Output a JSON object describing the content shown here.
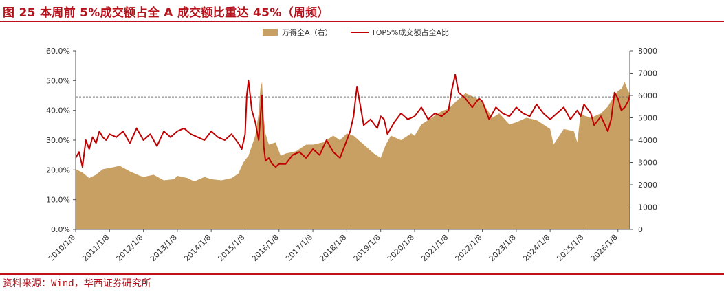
{
  "figure": {
    "title": "图 25  本周前 5%成交额占全 A 成交额比重达 45%（周频）",
    "source": "资料来源：Wind，华西证券研究所"
  },
  "chart_data": {
    "type": "line",
    "legend": [
      {
        "name": "万得全A（右）",
        "color": "#c9a063",
        "kind": "area"
      },
      {
        "name": "TOP5%成交额占全A比",
        "color": "#c00000",
        "kind": "line"
      }
    ],
    "legend_placement": "top-center",
    "left_axis": {
      "ylim": [
        0,
        60
      ],
      "ticks": [
        "0.0%",
        "10.0%",
        "20.0%",
        "30.0%",
        "40.0%",
        "50.0%",
        "60.0%"
      ],
      "tick_values": [
        0,
        10,
        20,
        30,
        40,
        50,
        60
      ]
    },
    "right_axis": {
      "ylim": [
        0,
        8000
      ],
      "ticks": [
        "0",
        "1000",
        "2000",
        "3000",
        "4000",
        "5000",
        "6000",
        "7000",
        "8000"
      ],
      "tick_values": [
        0,
        1000,
        2000,
        3000,
        4000,
        5000,
        6000,
        7000,
        8000
      ]
    },
    "x_axis": {
      "range": [
        2010.0,
        2026.35
      ],
      "tick_labels": [
        "2010/1/8",
        "2011/1/8",
        "2012/1/8",
        "2013/1/8",
        "2014/1/8",
        "2015/1/8",
        "2016/1/8",
        "2017/1/8",
        "2018/1/8",
        "2019/1/8",
        "2020/1/8",
        "2021/1/8",
        "2022/1/8",
        "2023/1/8",
        "2024/1/8",
        "2025/1/8",
        "2026/1/8"
      ],
      "tick_values": [
        2010,
        2011,
        2012,
        2013,
        2014,
        2015,
        2016,
        2017,
        2018,
        2019,
        2020,
        2021,
        2022,
        2023,
        2024,
        2025,
        2026
      ]
    },
    "reference_line": {
      "value": 44.5,
      "style": "dashed",
      "color": "#777777"
    },
    "series": [
      {
        "name": "万得全A（右）",
        "axis": "right",
        "x": [
          2010.0,
          2010.2,
          2010.4,
          2010.6,
          2010.8,
          2011.0,
          2011.3,
          2011.6,
          2011.9,
          2012.0,
          2012.3,
          2012.6,
          2012.9,
          2013.0,
          2013.3,
          2013.5,
          2013.8,
          2014.0,
          2014.3,
          2014.6,
          2014.8,
          2014.95,
          2015.1,
          2015.3,
          2015.4,
          2015.45,
          2015.5,
          2015.55,
          2015.6,
          2015.7,
          2015.9,
          2016.05,
          2016.2,
          2016.5,
          2016.8,
          2017.0,
          2017.3,
          2017.6,
          2017.8,
          2018.0,
          2018.2,
          2018.5,
          2018.8,
          2019.0,
          2019.15,
          2019.3,
          2019.6,
          2019.9,
          2020.0,
          2020.2,
          2020.5,
          2020.8,
          2021.0,
          2021.2,
          2021.5,
          2021.8,
          2022.0,
          2022.3,
          2022.5,
          2022.8,
          2023.0,
          2023.3,
          2023.6,
          2023.9,
          2024.0,
          2024.1,
          2024.4,
          2024.7,
          2024.8,
          2024.9,
          2025.0,
          2025.2,
          2025.5,
          2025.7,
          2025.9,
          2026.0,
          2026.1,
          2026.2,
          2026.3,
          2026.35
        ],
        "values": [
          2700,
          2550,
          2300,
          2450,
          2700,
          2750,
          2850,
          2600,
          2400,
          2350,
          2450,
          2200,
          2250,
          2400,
          2300,
          2150,
          2350,
          2250,
          2200,
          2300,
          2500,
          3000,
          3300,
          4200,
          5200,
          6300,
          6600,
          5000,
          4300,
          3800,
          3900,
          3300,
          3400,
          3500,
          3800,
          3800,
          3900,
          4200,
          4000,
          4300,
          4200,
          3800,
          3400,
          3200,
          3800,
          4200,
          4000,
          4300,
          4200,
          4700,
          5000,
          5300,
          5400,
          5700,
          6100,
          5900,
          5700,
          5000,
          5200,
          4700,
          4800,
          5000,
          4900,
          4600,
          4500,
          3800,
          4500,
          4400,
          3900,
          5200,
          5100,
          5000,
          5200,
          5500,
          6000,
          6200,
          6300,
          6600,
          6200,
          6100
        ]
      },
      {
        "name": "TOP5%成交额占全A比",
        "axis": "left",
        "x": [
          2010.0,
          2010.1,
          2010.2,
          2010.3,
          2010.4,
          2010.5,
          2010.6,
          2010.7,
          2010.8,
          2010.9,
          2011.0,
          2011.2,
          2011.4,
          2011.6,
          2011.8,
          2012.0,
          2012.2,
          2012.4,
          2012.6,
          2012.8,
          2013.0,
          2013.2,
          2013.4,
          2013.6,
          2013.8,
          2014.0,
          2014.2,
          2014.4,
          2014.6,
          2014.8,
          2014.9,
          2015.0,
          2015.05,
          2015.1,
          2015.2,
          2015.3,
          2015.4,
          2015.5,
          2015.55,
          2015.6,
          2015.7,
          2015.8,
          2015.9,
          2016.0,
          2016.2,
          2016.4,
          2016.6,
          2016.8,
          2017.0,
          2017.2,
          2017.4,
          2017.6,
          2017.8,
          2018.0,
          2018.1,
          2018.2,
          2018.3,
          2018.5,
          2018.7,
          2018.9,
          2019.0,
          2019.1,
          2019.2,
          2019.4,
          2019.6,
          2019.8,
          2020.0,
          2020.2,
          2020.4,
          2020.6,
          2020.8,
          2021.0,
          2021.1,
          2021.2,
          2021.3,
          2021.5,
          2021.7,
          2021.9,
          2022.0,
          2022.2,
          2022.4,
          2022.6,
          2022.8,
          2023.0,
          2023.2,
          2023.4,
          2023.6,
          2023.8,
          2024.0,
          2024.2,
          2024.4,
          2024.6,
          2024.8,
          2024.9,
          2025.0,
          2025.2,
          2025.3,
          2025.5,
          2025.7,
          2025.8,
          2025.9,
          2026.0,
          2026.1,
          2026.2,
          2026.3,
          2026.35
        ],
        "values": [
          24,
          26,
          21,
          30,
          27,
          31,
          29,
          33,
          31,
          30,
          32,
          31,
          33,
          29,
          34,
          30,
          32,
          28,
          33,
          31,
          33,
          34,
          32,
          31,
          30,
          33,
          31,
          30,
          32,
          29,
          27,
          32,
          45,
          50,
          40,
          36,
          30,
          45,
          28,
          23,
          24,
          22,
          21,
          22,
          22,
          25,
          26,
          24,
          27,
          25,
          30,
          26,
          24,
          30,
          33,
          38,
          48,
          35,
          37,
          34,
          38,
          37,
          32,
          36,
          39,
          37,
          38,
          41,
          37,
          39,
          38,
          40,
          47,
          52,
          46,
          44,
          41,
          44,
          43,
          37,
          41,
          39,
          38,
          41,
          39,
          38,
          42,
          39,
          37,
          39,
          41,
          37,
          40,
          38,
          42,
          39,
          35,
          38,
          33,
          37,
          46,
          44,
          40,
          41,
          43,
          45
        ]
      }
    ]
  }
}
